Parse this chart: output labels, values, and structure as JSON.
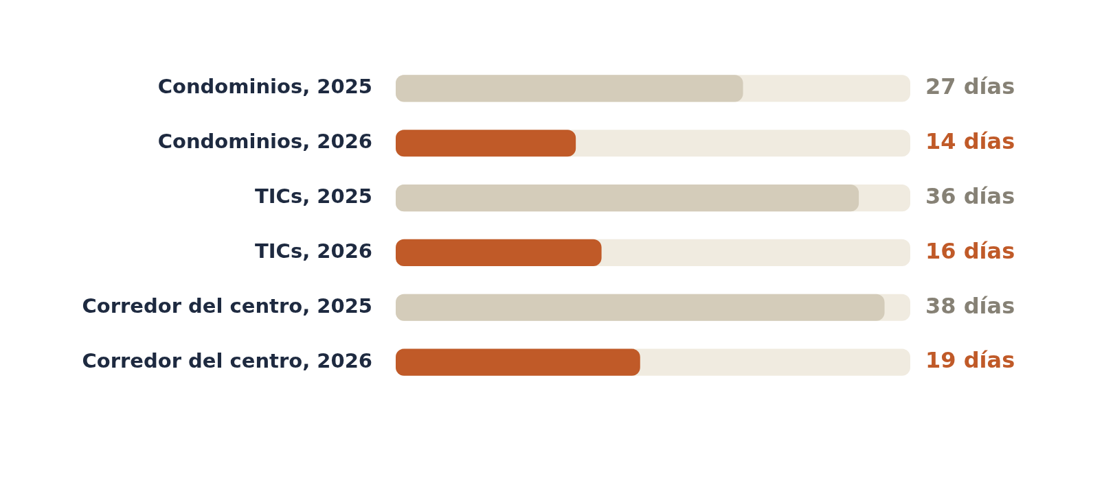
{
  "chart_data": {
    "type": "bar",
    "orientation": "horizontal",
    "categories": [
      "Condominios, 2025",
      "Condominios, 2026",
      "TICs, 2025",
      "TICs, 2026",
      "Corredor del centro, 2025",
      "Corredor del centro, 2026"
    ],
    "values": [
      27,
      14,
      36,
      16,
      38,
      19
    ],
    "colors": [
      "#d4ccba",
      "#c05a28",
      "#d4ccba",
      "#c05a28",
      "#d4ccba",
      "#c05a28"
    ],
    "value_labels": [
      "27 días",
      "14 días",
      "36 días",
      "16 días",
      "38 días",
      "19 días"
    ],
    "xlim": [
      0,
      40
    ],
    "tick_labels": "y",
    "legend": false
  }
}
